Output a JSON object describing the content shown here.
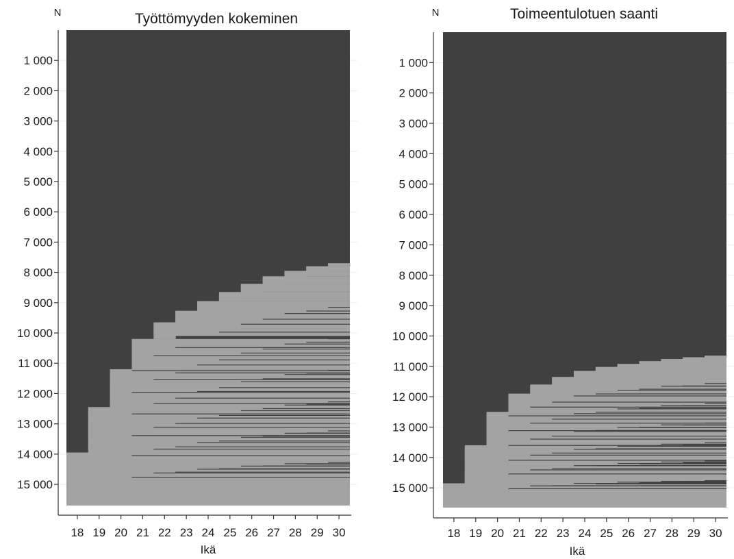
{
  "colors": {
    "background_band": "#404040",
    "event_band": "#a3a3a3",
    "axis": "#333333",
    "grid": "#eeeeee"
  },
  "chart_data": [
    {
      "type": "heatmap",
      "title": "Työttömyyden kokeminen",
      "xlabel": "Ikä",
      "ylabel": "N",
      "categories": [
        18,
        19,
        20,
        21,
        22,
        23,
        24,
        25,
        26,
        27,
        28,
        29,
        30
      ],
      "y_ticks": [
        {
          "value": 1000,
          "label": "1 000"
        },
        {
          "value": 2000,
          "label": "2 000"
        },
        {
          "value": 3000,
          "label": "3 000"
        },
        {
          "value": 4000,
          "label": "4 000"
        },
        {
          "value": 5000,
          "label": "5 000"
        },
        {
          "value": 6000,
          "label": "6 000"
        },
        {
          "value": 7000,
          "label": "7 000"
        },
        {
          "value": 8000,
          "label": "8 000"
        },
        {
          "value": 9000,
          "label": "9 000"
        },
        {
          "value": 10000,
          "label": "10 000"
        },
        {
          "value": 11000,
          "label": "11 000"
        },
        {
          "value": 12000,
          "label": "12 000"
        },
        {
          "value": 13000,
          "label": "13 000"
        },
        {
          "value": 14000,
          "label": "14 000"
        },
        {
          "value": 15000,
          "label": "15 000"
        }
      ],
      "ylim": [
        0,
        15700
      ],
      "first_event_start": [
        13950,
        12450,
        11200,
        10200,
        9650,
        9270,
        8950,
        8650,
        8380,
        8130,
        7950,
        7800,
        7700
      ],
      "event_bands": [
        {
          "from": 13950,
          "to": 15700
        },
        {
          "from": 12450,
          "to": 14000
        },
        {
          "from": 11200,
          "to": 12500
        },
        {
          "from": 10200,
          "to": 11200
        },
        {
          "from": 14750,
          "to": 15700
        },
        {
          "from": 13350,
          "to": 13600
        },
        {
          "from": 12000,
          "to": 12500
        },
        {
          "from": 10850,
          "to": 11150
        },
        {
          "from": 9650,
          "to": 10000
        },
        {
          "from": 9270,
          "to": 9700
        },
        {
          "from": 8950,
          "to": 9300
        },
        {
          "from": 8650,
          "to": 8950
        },
        {
          "from": 14450,
          "to": 14700
        },
        {
          "from": 13100,
          "to": 13350
        },
        {
          "from": 11850,
          "to": 12050
        },
        {
          "from": 10550,
          "to": 10850
        },
        {
          "from": 15150,
          "to": 15400
        },
        {
          "from": 14300,
          "to": 14480
        },
        {
          "from": 13650,
          "to": 13900
        },
        {
          "from": 12250,
          "to": 12450
        },
        {
          "from": 11550,
          "to": 11850
        },
        {
          "from": 10200,
          "to": 10550
        },
        {
          "from": 9850,
          "to": 10100
        },
        {
          "from": 9450,
          "to": 9650
        },
        {
          "from": 8380,
          "to": 8650
        },
        {
          "from": 8130,
          "to": 8380
        },
        {
          "from": 7950,
          "to": 8130
        },
        {
          "from": 7800,
          "to": 7950
        },
        {
          "from": 7700,
          "to": 7800
        },
        {
          "from": 12900,
          "to": 13100
        },
        {
          "from": 14050,
          "to": 14300
        },
        {
          "from": 12600,
          "to": 12800
        }
      ]
    },
    {
      "type": "heatmap",
      "title": "Toimeentulotuen saanti",
      "xlabel": "Ikä",
      "ylabel": "N",
      "categories": [
        18,
        19,
        20,
        21,
        22,
        23,
        24,
        25,
        26,
        27,
        28,
        29,
        30
      ],
      "y_ticks": [
        {
          "value": 1000,
          "label": "1 000"
        },
        {
          "value": 2000,
          "label": "2 000"
        },
        {
          "value": 3000,
          "label": "3 000"
        },
        {
          "value": 4000,
          "label": "4 000"
        },
        {
          "value": 5000,
          "label": "5 000"
        },
        {
          "value": 6000,
          "label": "6 000"
        },
        {
          "value": 7000,
          "label": "7 000"
        },
        {
          "value": 8000,
          "label": "8 000"
        },
        {
          "value": 9000,
          "label": "9 000"
        },
        {
          "value": 10000,
          "label": "10 000"
        },
        {
          "value": 11000,
          "label": "11 000"
        },
        {
          "value": 12000,
          "label": "12 000"
        },
        {
          "value": 13000,
          "label": "13 000"
        },
        {
          "value": 14000,
          "label": "14 000"
        },
        {
          "value": 15000,
          "label": "15 000"
        }
      ],
      "ylim": [
        0,
        15650
      ],
      "first_event_start": [
        14850,
        13600,
        12500,
        11900,
        11600,
        11350,
        11150,
        11020,
        10920,
        10830,
        10760,
        10700,
        10650
      ],
      "event_bands": [
        {
          "from": 14850,
          "to": 15650
        },
        {
          "from": 13600,
          "to": 15000
        },
        {
          "from": 12500,
          "to": 14100
        },
        {
          "from": 11900,
          "to": 12600
        },
        {
          "from": 11600,
          "to": 12000
        },
        {
          "from": 11350,
          "to": 11700
        },
        {
          "from": 11150,
          "to": 11450
        },
        {
          "from": 11020,
          "to": 11250
        },
        {
          "from": 10920,
          "to": 11100
        },
        {
          "from": 10830,
          "to": 11000
        },
        {
          "from": 10760,
          "to": 10900
        },
        {
          "from": 10700,
          "to": 10820
        },
        {
          "from": 10650,
          "to": 10750
        },
        {
          "from": 13150,
          "to": 13600
        },
        {
          "from": 14400,
          "to": 14850
        },
        {
          "from": 15100,
          "to": 15400
        },
        {
          "from": 13950,
          "to": 14150
        },
        {
          "from": 12950,
          "to": 13150
        },
        {
          "from": 12150,
          "to": 12400
        },
        {
          "from": 11700,
          "to": 11950
        },
        {
          "from": 14600,
          "to": 14750
        },
        {
          "from": 13750,
          "to": 13900
        },
        {
          "from": 12750,
          "to": 12900
        },
        {
          "from": 11450,
          "to": 11600
        }
      ]
    }
  ]
}
